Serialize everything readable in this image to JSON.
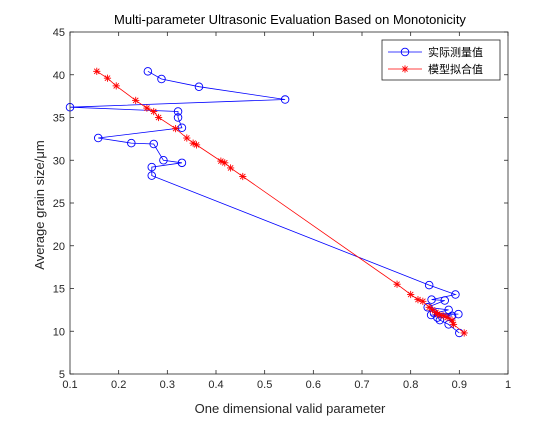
{
  "chart_data": {
    "type": "line",
    "title": "Multi-parameter Ultrasonic Evaluation Based on Monotonicity",
    "xlabel": "One dimensional valid parameter",
    "ylabel": "Average grain size/μm",
    "xlim": [
      0.1,
      1
    ],
    "ylim": [
      5,
      45
    ],
    "xticks": [
      "0.1",
      "0.2",
      "0.3",
      "0.4",
      "0.5",
      "0.6",
      "0.7",
      "0.8",
      "0.9",
      "1"
    ],
    "yticks": [
      "5",
      "10",
      "15",
      "20",
      "25",
      "30",
      "35",
      "40",
      "45"
    ],
    "grid": false,
    "legend_position": "top-right",
    "series": [
      {
        "name": "实际测量值",
        "color": "#0000ff",
        "marker": "circle",
        "x": [
          0.26,
          0.288,
          0.365,
          0.542,
          0.1,
          0.322,
          0.322,
          0.33,
          0.158,
          0.226,
          0.272,
          0.292,
          0.33,
          0.268,
          0.268,
          0.838,
          0.892,
          0.843,
          0.87,
          0.835,
          0.878,
          0.848,
          0.898,
          0.842,
          0.885,
          0.855,
          0.86,
          0.878,
          0.9
        ],
        "y": [
          40.4,
          39.5,
          38.6,
          37.1,
          36.2,
          35.7,
          35.0,
          33.8,
          32.6,
          32.0,
          31.9,
          30.0,
          29.7,
          29.2,
          28.2,
          15.4,
          14.3,
          13.7,
          13.6,
          12.8,
          12.5,
          12.1,
          12.0,
          11.9,
          11.8,
          11.6,
          11.3,
          10.8,
          9.8
        ]
      },
      {
        "name": "模型拟合值",
        "color": "#ff0000",
        "marker": "asterisk",
        "x": [
          0.155,
          0.177,
          0.195,
          0.235,
          0.258,
          0.272,
          0.282,
          0.317,
          0.34,
          0.353,
          0.36,
          0.41,
          0.418,
          0.43,
          0.455,
          0.772,
          0.8,
          0.815,
          0.825,
          0.838,
          0.845,
          0.852,
          0.855,
          0.86,
          0.868,
          0.875,
          0.885,
          0.888,
          0.91
        ],
        "y": [
          40.4,
          39.6,
          38.7,
          37.0,
          36.1,
          35.7,
          35.0,
          33.7,
          32.6,
          32.0,
          31.8,
          29.9,
          29.7,
          29.1,
          28.1,
          15.5,
          14.3,
          13.7,
          13.5,
          12.8,
          12.5,
          12.2,
          12.0,
          11.9,
          11.8,
          11.6,
          11.3,
          10.8,
          9.8
        ]
      }
    ]
  }
}
